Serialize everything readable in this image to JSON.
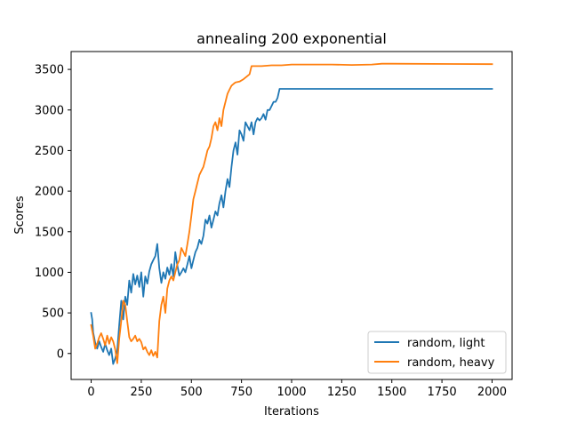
{
  "chart_data": {
    "type": "line",
    "title": "annealing 200 exponential",
    "xlabel": "Iterations",
    "ylabel": "Scores",
    "xlim": [
      -100,
      2100
    ],
    "ylim": [
      -320,
      3720
    ],
    "xticks": [
      0,
      250,
      500,
      750,
      1000,
      1250,
      1500,
      1750,
      2000
    ],
    "xtick_labels": [
      "0",
      "250",
      "500",
      "750",
      "1000",
      "1250",
      "1500",
      "1750",
      "2000"
    ],
    "yticks": [
      0,
      500,
      1000,
      1500,
      2000,
      2500,
      3000,
      3500
    ],
    "ytick_labels": [
      "0",
      "500",
      "1000",
      "1500",
      "2000",
      "2500",
      "3000",
      "3500"
    ],
    "grid": false,
    "legend_position": "lower-right",
    "series": [
      {
        "name": "random, light",
        "color": "#1f77b4",
        "points": [
          [
            0,
            500
          ],
          [
            5,
            420
          ],
          [
            10,
            260
          ],
          [
            20,
            130
          ],
          [
            30,
            60
          ],
          [
            40,
            150
          ],
          [
            50,
            80
          ],
          [
            60,
            20
          ],
          [
            70,
            120
          ],
          [
            80,
            40
          ],
          [
            90,
            -20
          ],
          [
            100,
            60
          ],
          [
            110,
            -130
          ],
          [
            120,
            -60
          ],
          [
            130,
            40
          ],
          [
            140,
            350
          ],
          [
            150,
            650
          ],
          [
            160,
            420
          ],
          [
            170,
            700
          ],
          [
            180,
            600
          ],
          [
            190,
            900
          ],
          [
            200,
            750
          ],
          [
            210,
            980
          ],
          [
            220,
            850
          ],
          [
            230,
            960
          ],
          [
            240,
            820
          ],
          [
            250,
            1000
          ],
          [
            260,
            700
          ],
          [
            270,
            950
          ],
          [
            280,
            860
          ],
          [
            290,
            1010
          ],
          [
            300,
            1100
          ],
          [
            310,
            1150
          ],
          [
            320,
            1200
          ],
          [
            330,
            1350
          ],
          [
            340,
            1050
          ],
          [
            350,
            870
          ],
          [
            360,
            1000
          ],
          [
            370,
            920
          ],
          [
            380,
            1060
          ],
          [
            390,
            970
          ],
          [
            400,
            1100
          ],
          [
            410,
            950
          ],
          [
            420,
            1250
          ],
          [
            430,
            1080
          ],
          [
            440,
            960
          ],
          [
            450,
            1000
          ],
          [
            460,
            1050
          ],
          [
            470,
            1000
          ],
          [
            480,
            1100
          ],
          [
            490,
            1200
          ],
          [
            500,
            1050
          ],
          [
            510,
            1150
          ],
          [
            520,
            1250
          ],
          [
            530,
            1300
          ],
          [
            540,
            1400
          ],
          [
            550,
            1350
          ],
          [
            560,
            1450
          ],
          [
            570,
            1650
          ],
          [
            580,
            1600
          ],
          [
            590,
            1700
          ],
          [
            600,
            1550
          ],
          [
            610,
            1650
          ],
          [
            620,
            1750
          ],
          [
            630,
            1700
          ],
          [
            640,
            1850
          ],
          [
            650,
            1950
          ],
          [
            660,
            1800
          ],
          [
            670,
            2000
          ],
          [
            680,
            2150
          ],
          [
            690,
            2050
          ],
          [
            700,
            2300
          ],
          [
            710,
            2500
          ],
          [
            720,
            2600
          ],
          [
            730,
            2450
          ],
          [
            740,
            2750
          ],
          [
            750,
            2700
          ],
          [
            760,
            2620
          ],
          [
            770,
            2850
          ],
          [
            780,
            2800
          ],
          [
            790,
            2750
          ],
          [
            800,
            2850
          ],
          [
            810,
            2700
          ],
          [
            820,
            2850
          ],
          [
            830,
            2900
          ],
          [
            840,
            2870
          ],
          [
            850,
            2900
          ],
          [
            860,
            2950
          ],
          [
            870,
            2880
          ],
          [
            880,
            3000
          ],
          [
            890,
            3000
          ],
          [
            900,
            3050
          ],
          [
            910,
            3100
          ],
          [
            920,
            3100
          ],
          [
            930,
            3150
          ],
          [
            940,
            3260
          ],
          [
            1000,
            3260
          ],
          [
            1500,
            3260
          ],
          [
            2000,
            3260
          ]
        ]
      },
      {
        "name": "random, heavy",
        "color": "#ff7f0e",
        "points": [
          [
            0,
            350
          ],
          [
            10,
            220
          ],
          [
            20,
            60
          ],
          [
            30,
            120
          ],
          [
            40,
            200
          ],
          [
            50,
            250
          ],
          [
            60,
            180
          ],
          [
            70,
            100
          ],
          [
            80,
            220
          ],
          [
            90,
            120
          ],
          [
            100,
            200
          ],
          [
            110,
            150
          ],
          [
            120,
            50
          ],
          [
            130,
            -120
          ],
          [
            140,
            180
          ],
          [
            150,
            400
          ],
          [
            160,
            650
          ],
          [
            170,
            600
          ],
          [
            180,
            400
          ],
          [
            190,
            200
          ],
          [
            200,
            150
          ],
          [
            210,
            180
          ],
          [
            220,
            220
          ],
          [
            230,
            150
          ],
          [
            240,
            180
          ],
          [
            250,
            140
          ],
          [
            260,
            50
          ],
          [
            270,
            80
          ],
          [
            280,
            20
          ],
          [
            290,
            -20
          ],
          [
            300,
            40
          ],
          [
            310,
            -30
          ],
          [
            320,
            20
          ],
          [
            330,
            -50
          ],
          [
            340,
            400
          ],
          [
            350,
            600
          ],
          [
            360,
            700
          ],
          [
            370,
            500
          ],
          [
            380,
            800
          ],
          [
            390,
            900
          ],
          [
            400,
            950
          ],
          [
            410,
            900
          ],
          [
            420,
            1000
          ],
          [
            430,
            1100
          ],
          [
            440,
            1150
          ],
          [
            450,
            1300
          ],
          [
            460,
            1250
          ],
          [
            470,
            1200
          ],
          [
            480,
            1350
          ],
          [
            490,
            1500
          ],
          [
            500,
            1700
          ],
          [
            510,
            1900
          ],
          [
            520,
            2000
          ],
          [
            530,
            2100
          ],
          [
            540,
            2200
          ],
          [
            550,
            2250
          ],
          [
            560,
            2300
          ],
          [
            570,
            2400
          ],
          [
            580,
            2500
          ],
          [
            590,
            2550
          ],
          [
            600,
            2650
          ],
          [
            610,
            2800
          ],
          [
            620,
            2850
          ],
          [
            630,
            2750
          ],
          [
            640,
            2900
          ],
          [
            650,
            2800
          ],
          [
            660,
            3000
          ],
          [
            670,
            3100
          ],
          [
            680,
            3200
          ],
          [
            690,
            3250
          ],
          [
            700,
            3300
          ],
          [
            710,
            3320
          ],
          [
            720,
            3340
          ],
          [
            740,
            3350
          ],
          [
            760,
            3380
          ],
          [
            780,
            3420
          ],
          [
            790,
            3440
          ],
          [
            800,
            3540
          ],
          [
            850,
            3540
          ],
          [
            900,
            3550
          ],
          [
            950,
            3550
          ],
          [
            1000,
            3560
          ],
          [
            1100,
            3560
          ],
          [
            1200,
            3560
          ],
          [
            1300,
            3555
          ],
          [
            1400,
            3560
          ],
          [
            1450,
            3570
          ],
          [
            1500,
            3570
          ],
          [
            2000,
            3565
          ]
        ]
      }
    ]
  }
}
